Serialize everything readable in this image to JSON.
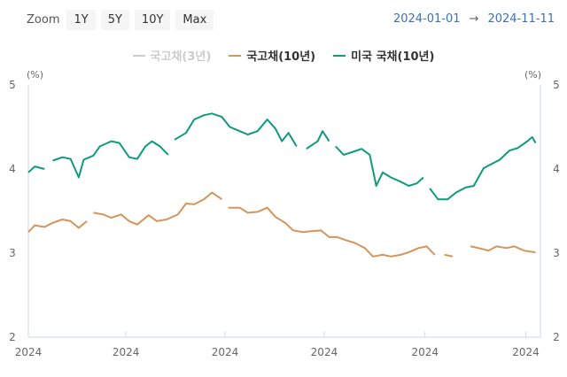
{
  "toolbar": {
    "zoom_label": "Zoom",
    "buttons": [
      "1Y",
      "5Y",
      "10Y",
      "Max"
    ],
    "from": "2024-01-01",
    "arrow": "→",
    "to": "2024-11-11"
  },
  "chart_data": {
    "type": "line",
    "yunit_left": "(%)",
    "yunit_right": "(%)",
    "ylim": [
      2,
      5
    ],
    "yticks": [
      2,
      3,
      4,
      5
    ],
    "xlim": [
      "2024-01-01",
      "2024-11-11"
    ],
    "xticks": [
      {
        "date": "2024-01-01",
        "label": "2024"
      },
      {
        "date": "2024-03-01",
        "label": "2024"
      },
      {
        "date": "2024-05-01",
        "label": "2024"
      },
      {
        "date": "2024-07-01",
        "label": "2024"
      },
      {
        "date": "2024-09-01",
        "label": "2024"
      },
      {
        "date": "2024-11-02",
        "label": "2024"
      }
    ],
    "legend_position": "top-center",
    "series": [
      {
        "name": "국고채(3년)",
        "color": "#cccccc",
        "visible": false,
        "data": []
      },
      {
        "name": "국고채(10년)",
        "color": "#d4955a",
        "visible": true,
        "data": [
          [
            "2024-01-01",
            3.25
          ],
          [
            "2024-01-05",
            3.33
          ],
          [
            "2024-01-11",
            3.31
          ],
          [
            "2024-01-16",
            3.36
          ],
          [
            "2024-01-22",
            3.4
          ],
          [
            "2024-01-27",
            3.38
          ],
          [
            "2024-02-01",
            3.3
          ],
          [
            "2024-02-06",
            3.38
          ],
          [
            "2024-02-08",
            null
          ],
          [
            "2024-02-10",
            3.48
          ],
          [
            "2024-02-16",
            3.46
          ],
          [
            "2024-02-21",
            3.42
          ],
          [
            "2024-02-27",
            3.46
          ],
          [
            "2024-03-03",
            3.38
          ],
          [
            "2024-03-08",
            3.34
          ],
          [
            "2024-03-15",
            3.45
          ],
          [
            "2024-03-20",
            3.38
          ],
          [
            "2024-03-26",
            3.4
          ],
          [
            "2024-04-02",
            3.46
          ],
          [
            "2024-04-07",
            3.59
          ],
          [
            "2024-04-12",
            3.58
          ],
          [
            "2024-04-18",
            3.64
          ],
          [
            "2024-04-23",
            3.72
          ],
          [
            "2024-04-29",
            3.64
          ],
          [
            "2024-05-01",
            null
          ],
          [
            "2024-05-03",
            3.54
          ],
          [
            "2024-05-10",
            3.54
          ],
          [
            "2024-05-15",
            3.48
          ],
          [
            "2024-05-21",
            3.49
          ],
          [
            "2024-05-27",
            3.54
          ],
          [
            "2024-06-01",
            3.43
          ],
          [
            "2024-06-07",
            3.36
          ],
          [
            "2024-06-12",
            3.27
          ],
          [
            "2024-06-18",
            3.25
          ],
          [
            "2024-06-23",
            3.26
          ],
          [
            "2024-06-29",
            3.27
          ],
          [
            "2024-07-04",
            3.19
          ],
          [
            "2024-07-09",
            3.19
          ],
          [
            "2024-07-15",
            3.15
          ],
          [
            "2024-07-20",
            3.12
          ],
          [
            "2024-07-26",
            3.06
          ],
          [
            "2024-07-31",
            2.96
          ],
          [
            "2024-08-06",
            2.98
          ],
          [
            "2024-08-11",
            2.96
          ],
          [
            "2024-08-17",
            2.98
          ],
          [
            "2024-08-22",
            3.01
          ],
          [
            "2024-08-28",
            3.06
          ],
          [
            "2024-09-02",
            3.08
          ],
          [
            "2024-09-07",
            2.98
          ],
          [
            "2024-09-10",
            null
          ],
          [
            "2024-09-13",
            2.98
          ],
          [
            "2024-09-18",
            2.96
          ],
          [
            "2024-09-22",
            null
          ],
          [
            "2024-09-29",
            3.08
          ],
          [
            "2024-10-04",
            3.06
          ],
          [
            "2024-10-10",
            3.03
          ],
          [
            "2024-10-15",
            3.08
          ],
          [
            "2024-10-21",
            3.06
          ],
          [
            "2024-10-26",
            3.08
          ],
          [
            "2024-11-01",
            3.03
          ],
          [
            "2024-11-08",
            3.01
          ]
        ]
      },
      {
        "name": "미국 국채(10년)",
        "color": "#0e9a7c",
        "visible": true,
        "data": [
          [
            "2024-01-01",
            3.96
          ],
          [
            "2024-01-05",
            4.03
          ],
          [
            "2024-01-11",
            4.0
          ],
          [
            "2024-01-14",
            null
          ],
          [
            "2024-01-16",
            4.1
          ],
          [
            "2024-01-22",
            4.14
          ],
          [
            "2024-01-27",
            4.12
          ],
          [
            "2024-02-01",
            3.9
          ],
          [
            "2024-02-04",
            4.11
          ],
          [
            "2024-02-10",
            4.16
          ],
          [
            "2024-02-14",
            4.27
          ],
          [
            "2024-02-21",
            4.33
          ],
          [
            "2024-02-26",
            4.31
          ],
          [
            "2024-03-03",
            4.14
          ],
          [
            "2024-03-08",
            4.12
          ],
          [
            "2024-03-13",
            4.27
          ],
          [
            "2024-03-17",
            4.33
          ],
          [
            "2024-03-22",
            4.27
          ],
          [
            "2024-03-27",
            4.17
          ],
          [
            "2024-03-30",
            null
          ],
          [
            "2024-03-31",
            4.35
          ],
          [
            "2024-04-07",
            4.43
          ],
          [
            "2024-04-12",
            4.59
          ],
          [
            "2024-04-18",
            4.64
          ],
          [
            "2024-04-23",
            4.66
          ],
          [
            "2024-04-29",
            4.62
          ],
          [
            "2024-05-04",
            4.5
          ],
          [
            "2024-05-10",
            4.45
          ],
          [
            "2024-05-15",
            4.41
          ],
          [
            "2024-05-21",
            4.45
          ],
          [
            "2024-05-27",
            4.59
          ],
          [
            "2024-06-01",
            4.48
          ],
          [
            "2024-06-05",
            4.33
          ],
          [
            "2024-06-09",
            4.43
          ],
          [
            "2024-06-14",
            4.27
          ],
          [
            "2024-06-16",
            null
          ],
          [
            "2024-06-20",
            4.24
          ],
          [
            "2024-06-27",
            4.33
          ],
          [
            "2024-06-30",
            4.45
          ],
          [
            "2024-07-04",
            4.33
          ],
          [
            "2024-07-05",
            null
          ],
          [
            "2024-07-08",
            4.27
          ],
          [
            "2024-07-13",
            4.17
          ],
          [
            "2024-07-18",
            4.2
          ],
          [
            "2024-07-24",
            4.24
          ],
          [
            "2024-07-29",
            4.17
          ],
          [
            "2024-08-02",
            3.8
          ],
          [
            "2024-08-06",
            3.96
          ],
          [
            "2024-08-11",
            3.9
          ],
          [
            "2024-08-17",
            3.85
          ],
          [
            "2024-08-22",
            3.8
          ],
          [
            "2024-08-27",
            3.83
          ],
          [
            "2024-08-31",
            3.9
          ],
          [
            "2024-09-02",
            null
          ],
          [
            "2024-09-04",
            3.77
          ],
          [
            "2024-09-09",
            3.64
          ],
          [
            "2024-09-15",
            3.64
          ],
          [
            "2024-09-20",
            3.72
          ],
          [
            "2024-09-26",
            3.78
          ],
          [
            "2024-10-01",
            3.8
          ],
          [
            "2024-10-07",
            4.01
          ],
          [
            "2024-10-12",
            4.06
          ],
          [
            "2024-10-17",
            4.11
          ],
          [
            "2024-10-23",
            4.22
          ],
          [
            "2024-10-28",
            4.25
          ],
          [
            "2024-11-03",
            4.33
          ],
          [
            "2024-11-06",
            4.38
          ],
          [
            "2024-11-08",
            4.31
          ]
        ]
      }
    ]
  }
}
